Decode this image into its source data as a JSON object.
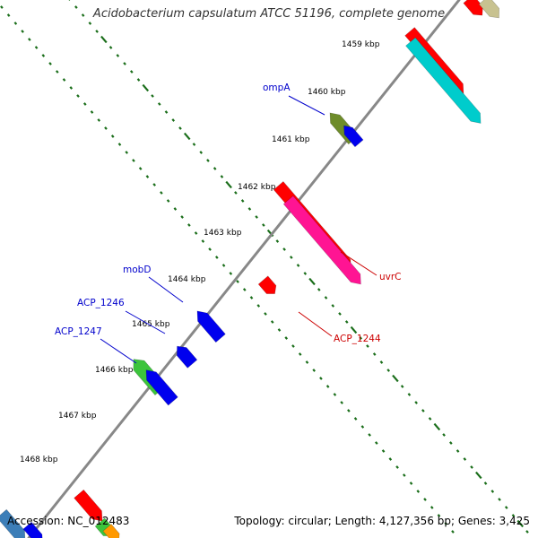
{
  "title": "Acidobacterium capsulatum ATCC 51196, complete genome",
  "footer": {
    "accession": "Accession: NC_012483",
    "summary": "Topology: circular; Length: 4,127,356 bp; Genes: 3,425"
  },
  "colors": {
    "backbone": "#888888",
    "tick": "#1a6e1a",
    "forward_label": "#0000cc",
    "reverse_label": "#cc0000",
    "kbp_label": "#000000",
    "gene_red": "#ff0000",
    "gene_cyan": "#00cccc",
    "gene_khaki": "#c8c290",
    "gene_olive": "#6e8c2a",
    "gene_blue": "#0000ee",
    "gene_green": "#3cc43c",
    "gene_pink": "#ff1493",
    "gene_teal": "#3c7eb8",
    "gene_orange": "#ff9900"
  },
  "kbp_labels": [
    "1459 kbp",
    "1460 kbp",
    "1461 kbp",
    "1462 kbp",
    "1463 kbp",
    "1464 kbp",
    "1465 kbp",
    "1466 kbp",
    "1467 kbp",
    "1468 kbp"
  ],
  "gene_labels": [
    {
      "text": "ompA",
      "strand": "forward"
    },
    {
      "text": "mobD",
      "strand": "forward"
    },
    {
      "text": "ACP_1246",
      "strand": "forward"
    },
    {
      "text": "ACP_1247",
      "strand": "forward"
    },
    {
      "text": "uvrC",
      "strand": "reverse"
    },
    {
      "text": "ACP_1244",
      "strand": "reverse"
    }
  ]
}
